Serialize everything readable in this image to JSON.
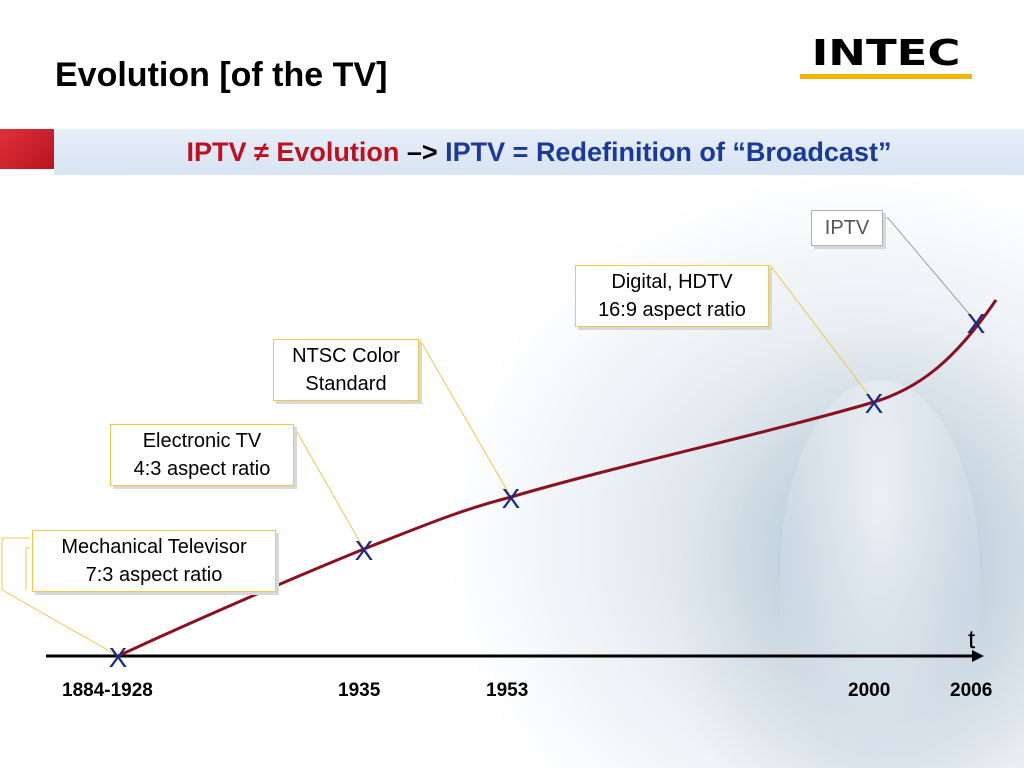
{
  "slide": {
    "title": "Evolution [of the TV]",
    "logo_text": "INTEC",
    "banner": {
      "part1": "IPTV ≠ Evolution",
      "part2": " –> ",
      "part3": "IPTV = Redefinition of “Broadcast”"
    },
    "axis_label": "t"
  },
  "milestones": [
    {
      "id": "mechanical",
      "line1": "Mechanical Televisor",
      "line2": "7:3 aspect ratio",
      "year": "1884-1928"
    },
    {
      "id": "electronic",
      "line1": "Electronic TV",
      "line2": "4:3 aspect ratio",
      "year": "1935"
    },
    {
      "id": "ntsc",
      "line1": "NTSC Color",
      "line2": "Standard",
      "year": "1953"
    },
    {
      "id": "digital",
      "line1": "Digital, HDTV",
      "line2": "16:9 aspect ratio",
      "year": "2000"
    },
    {
      "id": "iptv",
      "line1": "IPTV",
      "line2": "",
      "year": "2006"
    }
  ],
  "colors": {
    "curve": "#8b1020",
    "marker": "#1a2a8a",
    "banner_red": "#c01020",
    "banner_blue": "#1a3a9a",
    "logo_bar": "#f4b400",
    "leader": "#f0c84a"
  }
}
